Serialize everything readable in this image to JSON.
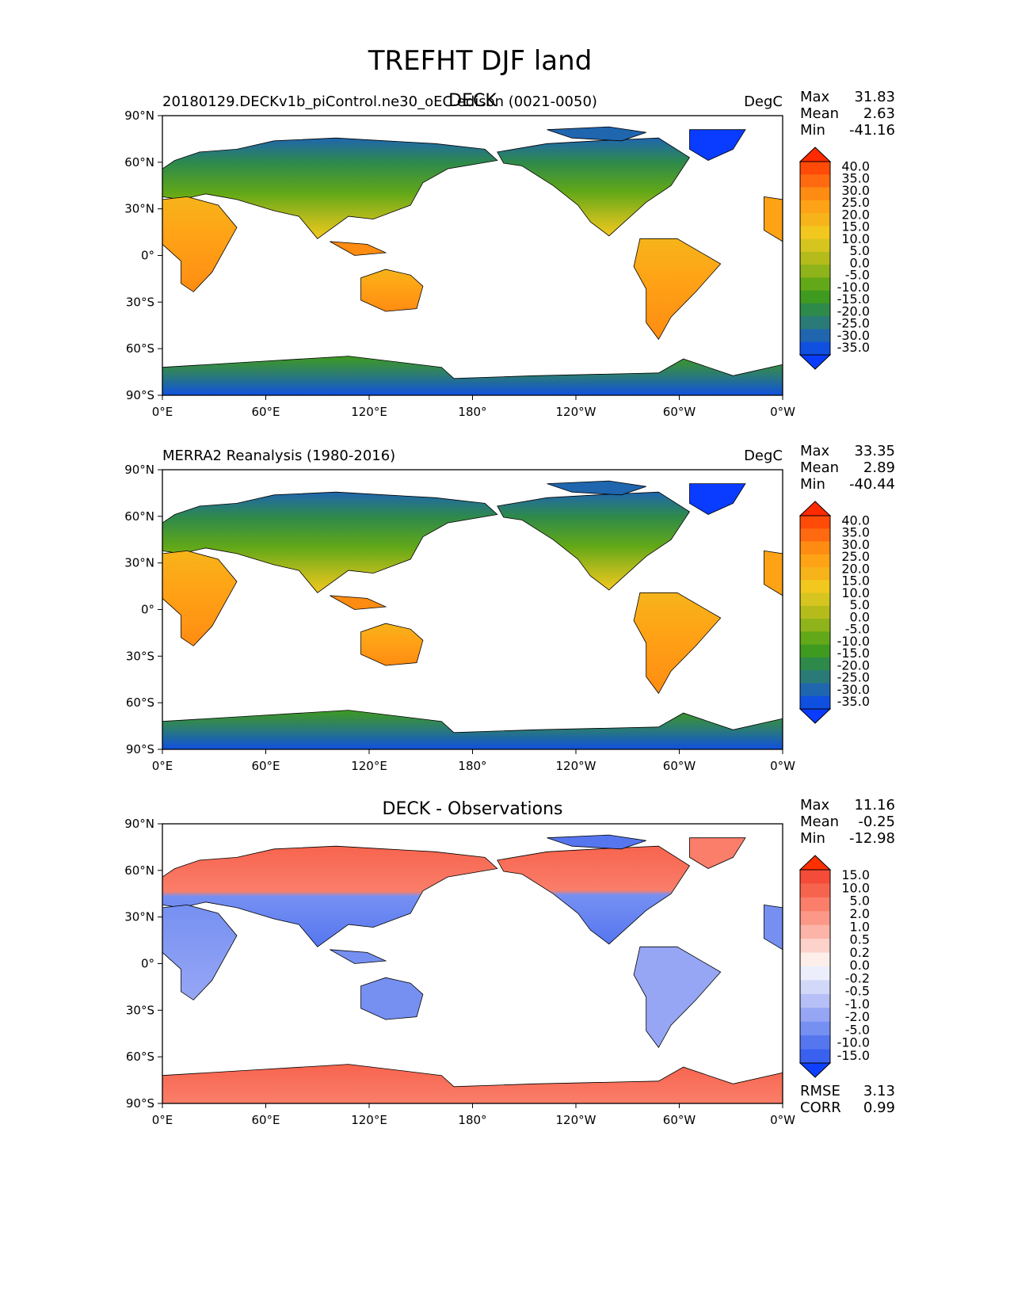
{
  "figure": {
    "title": "TREFHT DJF land"
  },
  "axes": {
    "lat_ticks": [
      "90°N",
      "60°N",
      "30°N",
      "0°",
      "30°S",
      "60°S",
      "90°S"
    ],
    "lon_ticks": [
      "0°E",
      "60°E",
      "120°E",
      "180°",
      "120°W",
      "60°W",
      "0°W"
    ]
  },
  "panels": [
    {
      "center_title": "DECK",
      "left_title": "20180129.DECKv1b_piControl.ne30_oEC.edison (0021-0050)",
      "units": "DegC",
      "stats": {
        "labels": [
          "Max",
          "Mean",
          "Min"
        ],
        "values": [
          "31.83",
          "2.63",
          "-41.16"
        ]
      },
      "colorbar": {
        "labels": [
          "40.0",
          "35.0",
          "30.0",
          "25.0",
          "20.0",
          "15.0",
          "10.0",
          "5.0",
          "0.0",
          "-5.0",
          "-10.0",
          "-15.0",
          "-20.0",
          "-25.0",
          "-30.0",
          "-35.0"
        ],
        "colors": [
          "#ff2a00",
          "#ff4a08",
          "#ff6a10",
          "#ff8c12",
          "#ffa316",
          "#f6b41a",
          "#f2c81e",
          "#d6c51e",
          "#b6bb1c",
          "#8fb31a",
          "#62a818",
          "#3f9a20",
          "#2e8a4a",
          "#2a7a78",
          "#1f66ae",
          "#1050e0",
          "#0a3cff"
        ]
      },
      "map_style": "temperature"
    },
    {
      "center_title": "",
      "left_title": "MERRA2 Reanalysis (1980-2016)",
      "units": "DegC",
      "stats": {
        "labels": [
          "Max",
          "Mean",
          "Min"
        ],
        "values": [
          "33.35",
          "2.89",
          "-40.44"
        ]
      },
      "colorbar": {
        "labels": [
          "40.0",
          "35.0",
          "30.0",
          "25.0",
          "20.0",
          "15.0",
          "10.0",
          "5.0",
          "0.0",
          "-5.0",
          "-10.0",
          "-15.0",
          "-20.0",
          "-25.0",
          "-30.0",
          "-35.0"
        ],
        "colors": [
          "#ff2a00",
          "#ff4a08",
          "#ff6a10",
          "#ff8c12",
          "#ffa316",
          "#f6b41a",
          "#f2c81e",
          "#d6c51e",
          "#b6bb1c",
          "#8fb31a",
          "#62a818",
          "#3f9a20",
          "#2e8a4a",
          "#2a7a78",
          "#1f66ae",
          "#1050e0",
          "#0a3cff"
        ]
      },
      "map_style": "temperature"
    },
    {
      "center_title": "DECK - Observations",
      "left_title": "",
      "units": "",
      "stats": {
        "labels": [
          "Max",
          "Mean",
          "Min"
        ],
        "values": [
          "11.16",
          "-0.25",
          "-12.98"
        ]
      },
      "colorbar": {
        "labels": [
          "15.0",
          "10.0",
          "5.0",
          "2.0",
          "1.0",
          "0.5",
          "0.2",
          "0.0",
          "-0.2",
          "-0.5",
          "-1.0",
          "-2.0",
          "-5.0",
          "-10.0",
          "-15.0"
        ],
        "colors": [
          "#ff3000",
          "#f44c38",
          "#f7644e",
          "#fa7e6a",
          "#fb9888",
          "#fcb4a8",
          "#fdd2ca",
          "#fdeeea",
          "#eceefb",
          "#d2d8f8",
          "#b6c0f6",
          "#96a6f4",
          "#7690f2",
          "#5676f0",
          "#3a60f0",
          "#1040ff"
        ]
      },
      "footer_stats": {
        "labels": [
          "RMSE",
          "CORR"
        ],
        "values": [
          "3.13",
          "0.99"
        ]
      },
      "map_style": "difference"
    }
  ]
}
